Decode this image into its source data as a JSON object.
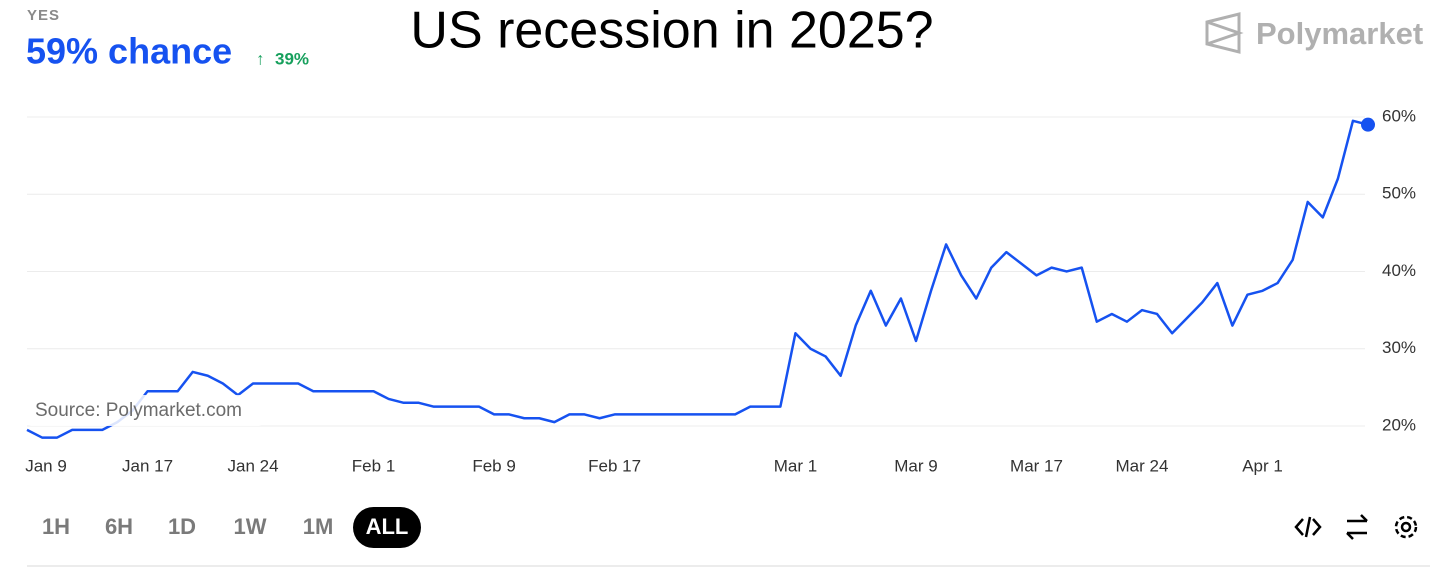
{
  "chart_data": {
    "type": "line",
    "title": "US recession in 2025?",
    "categories": [
      "Jan 9",
      null,
      null,
      null,
      null,
      null,
      null,
      null,
      "Jan 17",
      null,
      null,
      null,
      null,
      null,
      null,
      "Jan 24",
      null,
      null,
      null,
      null,
      null,
      null,
      null,
      "Feb 1",
      null,
      null,
      null,
      null,
      null,
      null,
      null,
      "Feb 9",
      null,
      null,
      null,
      null,
      null,
      null,
      null,
      "Feb 17",
      null,
      null,
      null,
      null,
      null,
      null,
      null,
      null,
      null,
      null,
      null,
      "Mar 1",
      null,
      null,
      null,
      null,
      null,
      null,
      null,
      "Mar 9",
      null,
      null,
      null,
      null,
      null,
      null,
      null,
      "Mar 17",
      null,
      null,
      null,
      null,
      null,
      null,
      "Mar 24",
      null,
      null,
      null,
      null,
      null,
      null,
      null,
      "Apr 1",
      null,
      null,
      null,
      null,
      null,
      null,
      null
    ],
    "values": [
      19.5,
      18.5,
      18.5,
      19.5,
      19.5,
      19.5,
      20.5,
      22,
      24.5,
      24.5,
      24.5,
      27,
      26.5,
      25.5,
      24,
      25.5,
      25.5,
      25.5,
      25.5,
      24.5,
      24.5,
      24.5,
      24.5,
      24.5,
      23.5,
      23,
      23,
      22.5,
      22.5,
      22.5,
      22.5,
      21.5,
      21.5,
      21,
      21,
      20.5,
      21.5,
      21.5,
      21,
      21.5,
      21.5,
      21.5,
      21.5,
      21.5,
      21.5,
      21.5,
      21.5,
      21.5,
      22.5,
      22.5,
      22.5,
      32,
      30,
      29,
      26.5,
      33,
      37.5,
      33,
      36.5,
      31,
      37.5,
      43.5,
      39.5,
      36.5,
      40.5,
      42.5,
      41,
      39.5,
      40.5,
      40,
      40.5,
      33.5,
      34.5,
      33.5,
      35,
      34.5,
      32,
      34,
      36,
      38.5,
      33,
      37,
      37.5,
      38.5,
      41.5,
      49,
      47,
      52,
      59.5,
      59
    ],
    "color": "#1652f0",
    "ylim": [
      17.5,
      62
    ],
    "yticks": [
      {
        "value": 20,
        "label": "20%"
      },
      {
        "value": 30,
        "label": "30%"
      },
      {
        "value": 40,
        "label": "40%"
      },
      {
        "value": 50,
        "label": "50%"
      },
      {
        "value": 60,
        "label": "60%"
      }
    ],
    "grid": true
  },
  "market": {
    "outcome": "YES",
    "chance": "59% chance",
    "change": "39%"
  },
  "source": "Source: Polymarket.com",
  "brand": "Polymarket",
  "timeframes": [
    "1H",
    "6H",
    "1D",
    "1W",
    "1M",
    "ALL"
  ],
  "selected_timeframe": "ALL"
}
